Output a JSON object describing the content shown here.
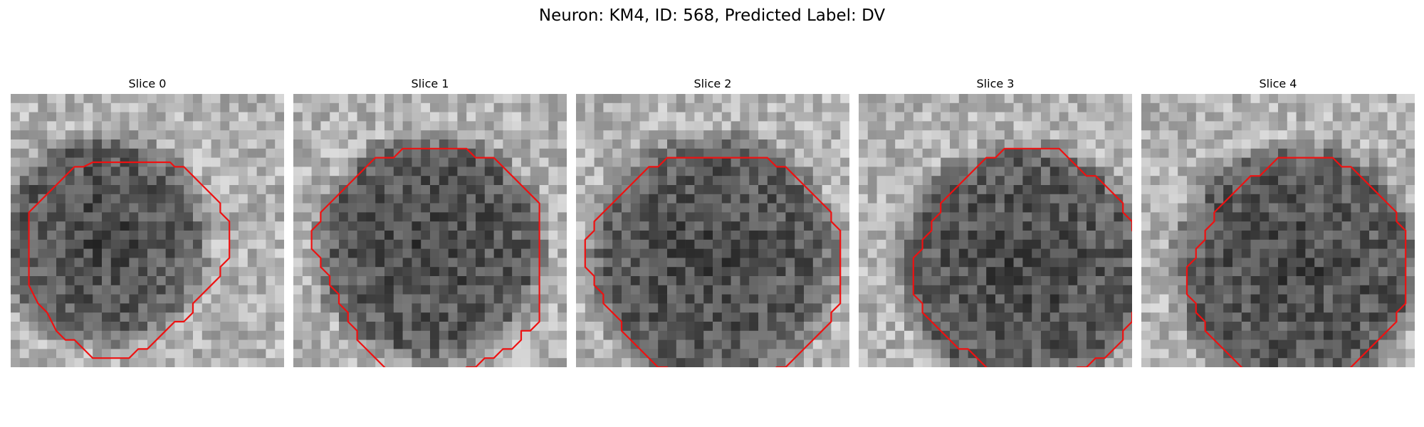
{
  "figure": {
    "title": "Neuron: KM4, ID: 568, Predicted Label: DV"
  },
  "contour_color": "#ee1111",
  "colormap": "gray",
  "panels": [
    {
      "title": "Slice 0",
      "contour": [
        [
          10.5,
          3.5
        ],
        [
          13.5,
          3.5
        ],
        [
          14,
          4
        ],
        [
          15,
          4
        ],
        [
          16,
          5
        ],
        [
          17,
          6
        ],
        [
          18,
          7
        ],
        [
          19,
          8
        ],
        [
          19,
          9
        ],
        [
          20,
          10
        ],
        [
          20,
          11
        ],
        [
          20,
          12
        ],
        [
          20,
          13
        ],
        [
          20,
          14
        ],
        [
          19,
          15
        ],
        [
          19,
          16
        ],
        [
          18,
          17
        ],
        [
          17,
          18
        ],
        [
          16,
          19
        ],
        [
          16,
          20
        ],
        [
          15,
          21
        ],
        [
          14,
          21
        ],
        [
          13,
          22
        ],
        [
          12,
          23
        ],
        [
          11,
          24
        ],
        [
          10,
          24
        ],
        [
          9,
          25
        ],
        [
          8,
          25
        ],
        [
          6,
          25
        ],
        [
          5,
          25
        ],
        [
          4,
          24
        ],
        [
          3,
          23
        ],
        [
          2,
          23
        ],
        [
          1,
          22
        ],
        [
          0.5,
          21
        ],
        [
          0,
          20
        ],
        [
          -1,
          19
        ],
        [
          -1.5,
          18
        ],
        [
          -2,
          17
        ],
        [
          -2,
          16
        ],
        [
          -2,
          15
        ],
        [
          -2,
          14
        ],
        [
          -2,
          13
        ],
        [
          -2,
          12
        ],
        [
          -2,
          11
        ],
        [
          -2,
          10
        ],
        [
          -2,
          9
        ],
        [
          -1,
          8
        ],
        [
          0,
          7
        ],
        [
          1,
          6
        ],
        [
          2,
          5
        ],
        [
          3,
          4
        ],
        [
          4,
          4
        ],
        [
          5,
          3.5
        ],
        [
          6,
          3.5
        ],
        [
          8,
          3.5
        ]
      ],
      "dark_center": [
        6,
        12
      ],
      "dark_radius": 10,
      "seed": 11
    },
    {
      "title": "Slice 1",
      "contour": [
        [
          11,
          2
        ],
        [
          15,
          2
        ],
        [
          16,
          3
        ],
        [
          17,
          3
        ],
        [
          18,
          3
        ],
        [
          19,
          4
        ],
        [
          20,
          5
        ],
        [
          21,
          6
        ],
        [
          22,
          7
        ],
        [
          23,
          8
        ],
        [
          23,
          10
        ],
        [
          23,
          12
        ],
        [
          23,
          14
        ],
        [
          23,
          16
        ],
        [
          23,
          18
        ],
        [
          23,
          20
        ],
        [
          23,
          21
        ],
        [
          22,
          22
        ],
        [
          21,
          22
        ],
        [
          21,
          23
        ],
        [
          20,
          24
        ],
        [
          19,
          24
        ],
        [
          18,
          25
        ],
        [
          17,
          25
        ],
        [
          16,
          26
        ],
        [
          15,
          26
        ],
        [
          14,
          27
        ],
        [
          12,
          27
        ],
        [
          10,
          27
        ],
        [
          8,
          27
        ],
        [
          7,
          27
        ],
        [
          6,
          26
        ],
        [
          5,
          25
        ],
        [
          4,
          24
        ],
        [
          3,
          23
        ],
        [
          3,
          22
        ],
        [
          2,
          21
        ],
        [
          2,
          20
        ],
        [
          1,
          19
        ],
        [
          1,
          18
        ],
        [
          0,
          17
        ],
        [
          0,
          16
        ],
        [
          -1,
          15
        ],
        [
          -1,
          14
        ],
        [
          -2,
          13
        ],
        [
          -2,
          12
        ],
        [
          -2,
          11
        ],
        [
          -1,
          10
        ],
        [
          -1,
          9
        ],
        [
          0,
          8
        ],
        [
          1,
          7
        ],
        [
          2,
          6
        ],
        [
          3,
          5
        ],
        [
          4,
          4
        ],
        [
          5,
          3
        ],
        [
          6,
          3
        ],
        [
          7,
          3
        ],
        [
          8,
          2
        ],
        [
          10,
          2
        ]
      ],
      "dark_center": [
        11,
        13
      ],
      "dark_radius": 11,
      "seed": 23
    },
    {
      "title": "Slice 2",
      "contour": [
        [
          10,
          3
        ],
        [
          17,
          3
        ],
        [
          18,
          4
        ],
        [
          19,
          4
        ],
        [
          20,
          5
        ],
        [
          21,
          6
        ],
        [
          22,
          7
        ],
        [
          23,
          8
        ],
        [
          24,
          9
        ],
        [
          24,
          10
        ],
        [
          25,
          11
        ],
        [
          25,
          12
        ],
        [
          25,
          14
        ],
        [
          25,
          16
        ],
        [
          25,
          18
        ],
        [
          25,
          19
        ],
        [
          24,
          20
        ],
        [
          24,
          21
        ],
        [
          23,
          22
        ],
        [
          22,
          23
        ],
        [
          21,
          24
        ],
        [
          20,
          25
        ],
        [
          19,
          26
        ],
        [
          18,
          26
        ],
        [
          17,
          27
        ],
        [
          16,
          27
        ],
        [
          15,
          28
        ],
        [
          14,
          28
        ],
        [
          13,
          28
        ],
        [
          11,
          28
        ],
        [
          10,
          28
        ],
        [
          9,
          28
        ],
        [
          8,
          27
        ],
        [
          7,
          27
        ],
        [
          6,
          26
        ],
        [
          5,
          26
        ],
        [
          4,
          25
        ],
        [
          3,
          24
        ],
        [
          2,
          23
        ],
        [
          1,
          22
        ],
        [
          1,
          21
        ],
        [
          0,
          20
        ],
        [
          -1,
          19
        ],
        [
          -1,
          18
        ],
        [
          -2,
          17
        ],
        [
          -2,
          16
        ],
        [
          -3,
          15
        ],
        [
          -3,
          14
        ],
        [
          -3,
          13
        ],
        [
          -3,
          12
        ],
        [
          -2,
          11
        ],
        [
          -2,
          10
        ],
        [
          -1,
          9
        ],
        [
          0,
          8
        ],
        [
          1,
          7
        ],
        [
          2,
          6
        ],
        [
          3,
          5
        ],
        [
          4,
          4
        ],
        [
          5,
          4
        ],
        [
          6,
          3
        ],
        [
          8,
          3
        ]
      ],
      "dark_center": [
        11,
        14
      ],
      "dark_radius": 12,
      "seed": 37
    },
    {
      "title": "Slice 3",
      "contour": [
        [
          12,
          2
        ],
        [
          18,
          2
        ],
        [
          19,
          3
        ],
        [
          20,
          4
        ],
        [
          21,
          5
        ],
        [
          22,
          5
        ],
        [
          23,
          6
        ],
        [
          24,
          7
        ],
        [
          25,
          8
        ],
        [
          25,
          9
        ],
        [
          26,
          10
        ],
        [
          26,
          11
        ],
        [
          27,
          12
        ],
        [
          27,
          13
        ],
        [
          27,
          15
        ],
        [
          27,
          17
        ],
        [
          27,
          19
        ],
        [
          26,
          20
        ],
        [
          26,
          21
        ],
        [
          25,
          22
        ],
        [
          25,
          23
        ],
        [
          24,
          24
        ],
        [
          23,
          25
        ],
        [
          22,
          25
        ],
        [
          21,
          26
        ],
        [
          20,
          26
        ],
        [
          19,
          27
        ],
        [
          18,
          27
        ],
        [
          17,
          27
        ],
        [
          15,
          27
        ],
        [
          13,
          27
        ],
        [
          12,
          27
        ],
        [
          11,
          27
        ],
        [
          10,
          26
        ],
        [
          9,
          25
        ],
        [
          8,
          24
        ],
        [
          7,
          24
        ],
        [
          6,
          23
        ],
        [
          5,
          22
        ],
        [
          4,
          21
        ],
        [
          3,
          20
        ],
        [
          3,
          19
        ],
        [
          2,
          18
        ],
        [
          2,
          17
        ],
        [
          2,
          16
        ],
        [
          2,
          15
        ],
        [
          2,
          14
        ],
        [
          3,
          13
        ],
        [
          3,
          12
        ],
        [
          4,
          11
        ],
        [
          4,
          10
        ],
        [
          5,
          9
        ],
        [
          5,
          8
        ],
        [
          6,
          7
        ],
        [
          7,
          6
        ],
        [
          8,
          5
        ],
        [
          9,
          4
        ],
        [
          10,
          3
        ],
        [
          11,
          3
        ]
      ],
      "dark_center": [
        14,
        15
      ],
      "dark_radius": 12,
      "seed": 53
    },
    {
      "title": "Slice 4",
      "contour": [
        [
          11,
          3
        ],
        [
          17,
          3
        ],
        [
          18,
          4
        ],
        [
          19,
          4
        ],
        [
          20,
          5
        ],
        [
          21,
          6
        ],
        [
          22,
          7
        ],
        [
          23,
          8
        ],
        [
          24,
          9
        ],
        [
          24,
          10
        ],
        [
          25,
          11
        ],
        [
          25,
          12
        ],
        [
          25,
          14
        ],
        [
          25,
          16
        ],
        [
          25,
          18
        ],
        [
          25,
          19
        ],
        [
          24,
          20
        ],
        [
          24,
          21
        ],
        [
          23,
          22
        ],
        [
          22,
          23
        ],
        [
          21,
          24
        ],
        [
          20,
          25
        ],
        [
          19,
          26
        ],
        [
          18,
          27
        ],
        [
          17,
          28
        ],
        [
          16,
          28
        ],
        [
          14,
          28
        ],
        [
          12,
          28
        ],
        [
          10,
          28
        ],
        [
          9,
          28
        ],
        [
          8,
          27
        ],
        [
          7,
          26
        ],
        [
          6,
          25
        ],
        [
          5,
          24
        ],
        [
          4,
          23
        ],
        [
          3,
          22
        ],
        [
          3,
          21
        ],
        [
          2,
          20
        ],
        [
          2,
          19
        ],
        [
          1,
          18
        ],
        [
          1,
          17
        ],
        [
          1,
          16
        ],
        [
          1,
          15
        ],
        [
          2,
          14
        ],
        [
          2,
          13
        ],
        [
          3,
          12
        ],
        [
          3,
          11
        ],
        [
          4,
          10
        ],
        [
          4,
          9
        ],
        [
          5,
          8
        ],
        [
          6,
          7
        ],
        [
          7,
          6
        ],
        [
          8,
          5
        ],
        [
          9,
          5
        ],
        [
          10,
          4
        ]
      ],
      "dark_center": [
        13,
        15
      ],
      "dark_radius": 12,
      "seed": 71
    }
  ]
}
